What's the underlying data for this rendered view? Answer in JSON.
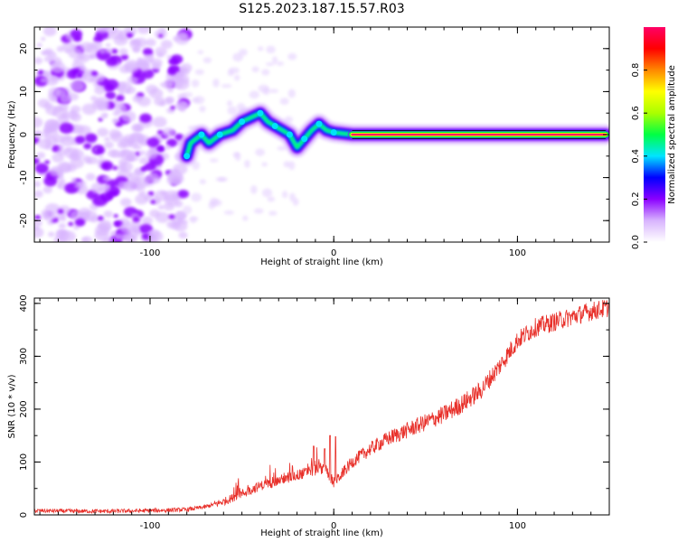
{
  "title": "S125.2023.187.15.57.R03",
  "chart_data": [
    {
      "type": "heatmap",
      "xlabel": "Height of straight line (km)",
      "ylabel": "Frequency (Hz)",
      "xlim": [
        -163,
        150
      ],
      "ylim": [
        -25,
        25
      ],
      "xticks": [
        -100,
        0,
        100
      ],
      "yticks": [
        -20,
        -10,
        0,
        10,
        20
      ],
      "grid": false,
      "description_regions": {
        "noise_region_x": [
          -163,
          -80
        ],
        "signal_path": [
          {
            "x": -80,
            "y": -5
          },
          {
            "x": -78,
            "y": -2
          },
          {
            "x": -72,
            "y": 0
          },
          {
            "x": -68,
            "y": -2
          },
          {
            "x": -62,
            "y": 0
          },
          {
            "x": -55,
            "y": 1
          },
          {
            "x": -50,
            "y": 3
          },
          {
            "x": -45,
            "y": 4
          },
          {
            "x": -40,
            "y": 5
          },
          {
            "x": -36,
            "y": 3
          },
          {
            "x": -32,
            "y": 2
          },
          {
            "x": -28,
            "y": 1
          },
          {
            "x": -24,
            "y": 0
          },
          {
            "x": -20,
            "y": -3
          },
          {
            "x": -16,
            "y": -1
          },
          {
            "x": -12,
            "y": 1
          },
          {
            "x": -8,
            "y": 2.5
          },
          {
            "x": -4,
            "y": 1
          },
          {
            "x": 0,
            "y": 0.5
          },
          {
            "x": 10,
            "y": 0
          },
          {
            "x": 148,
            "y": 0
          }
        ],
        "steady_line_x": [
          10,
          148
        ],
        "steady_line_y": 0
      }
    },
    {
      "type": "colorbar",
      "label": "Normalized spectral amplitude",
      "ticks": [
        0.0,
        0.2,
        0.4,
        0.6,
        0.8
      ],
      "tick_labels": [
        "0.0",
        "0.2",
        "0.4",
        "0.6",
        "0.8"
      ],
      "range": [
        0,
        1
      ],
      "colormap": [
        "#ffffff",
        "#d8b4fe",
        "#8b00ff",
        "#0000ff",
        "#00e5ff",
        "#00ff44",
        "#aaff00",
        "#ffff00",
        "#ff8800",
        "#ff0000",
        "#ff0066"
      ]
    },
    {
      "type": "line",
      "xlabel": "Height of straight line (km)",
      "ylabel": "SNR (10 * v/v)",
      "xlim": [
        -163,
        150
      ],
      "ylim": [
        0,
        410
      ],
      "xticks": [
        -100,
        0,
        100
      ],
      "yticks": [
        0,
        100,
        200,
        300,
        400
      ],
      "color": "#e8312b",
      "grid": false,
      "series": [
        {
          "trend": [
            {
              "x": -163,
              "y": 8
            },
            {
              "x": -140,
              "y": 7
            },
            {
              "x": -120,
              "y": 7
            },
            {
              "x": -100,
              "y": 8
            },
            {
              "x": -80,
              "y": 10
            },
            {
              "x": -70,
              "y": 15
            },
            {
              "x": -60,
              "y": 25
            },
            {
              "x": -50,
              "y": 40
            },
            {
              "x": -40,
              "y": 55
            },
            {
              "x": -30,
              "y": 65
            },
            {
              "x": -20,
              "y": 75
            },
            {
              "x": -10,
              "y": 85
            },
            {
              "x": -5,
              "y": 90
            },
            {
              "x": 0,
              "y": 60
            },
            {
              "x": 5,
              "y": 80
            },
            {
              "x": 10,
              "y": 100
            },
            {
              "x": 20,
              "y": 125
            },
            {
              "x": 30,
              "y": 145
            },
            {
              "x": 40,
              "y": 160
            },
            {
              "x": 50,
              "y": 175
            },
            {
              "x": 60,
              "y": 190
            },
            {
              "x": 70,
              "y": 210
            },
            {
              "x": 80,
              "y": 235
            },
            {
              "x": 90,
              "y": 280
            },
            {
              "x": 100,
              "y": 330
            },
            {
              "x": 110,
              "y": 355
            },
            {
              "x": 120,
              "y": 365
            },
            {
              "x": 130,
              "y": 375
            },
            {
              "x": 140,
              "y": 385
            },
            {
              "x": 150,
              "y": 392
            }
          ],
          "spikes": [
            {
              "x": -2,
              "y": 150
            },
            {
              "x": -5,
              "y": 125
            },
            {
              "x": -11,
              "y": 130
            },
            {
              "x": 1,
              "y": 148
            }
          ]
        }
      ]
    }
  ]
}
